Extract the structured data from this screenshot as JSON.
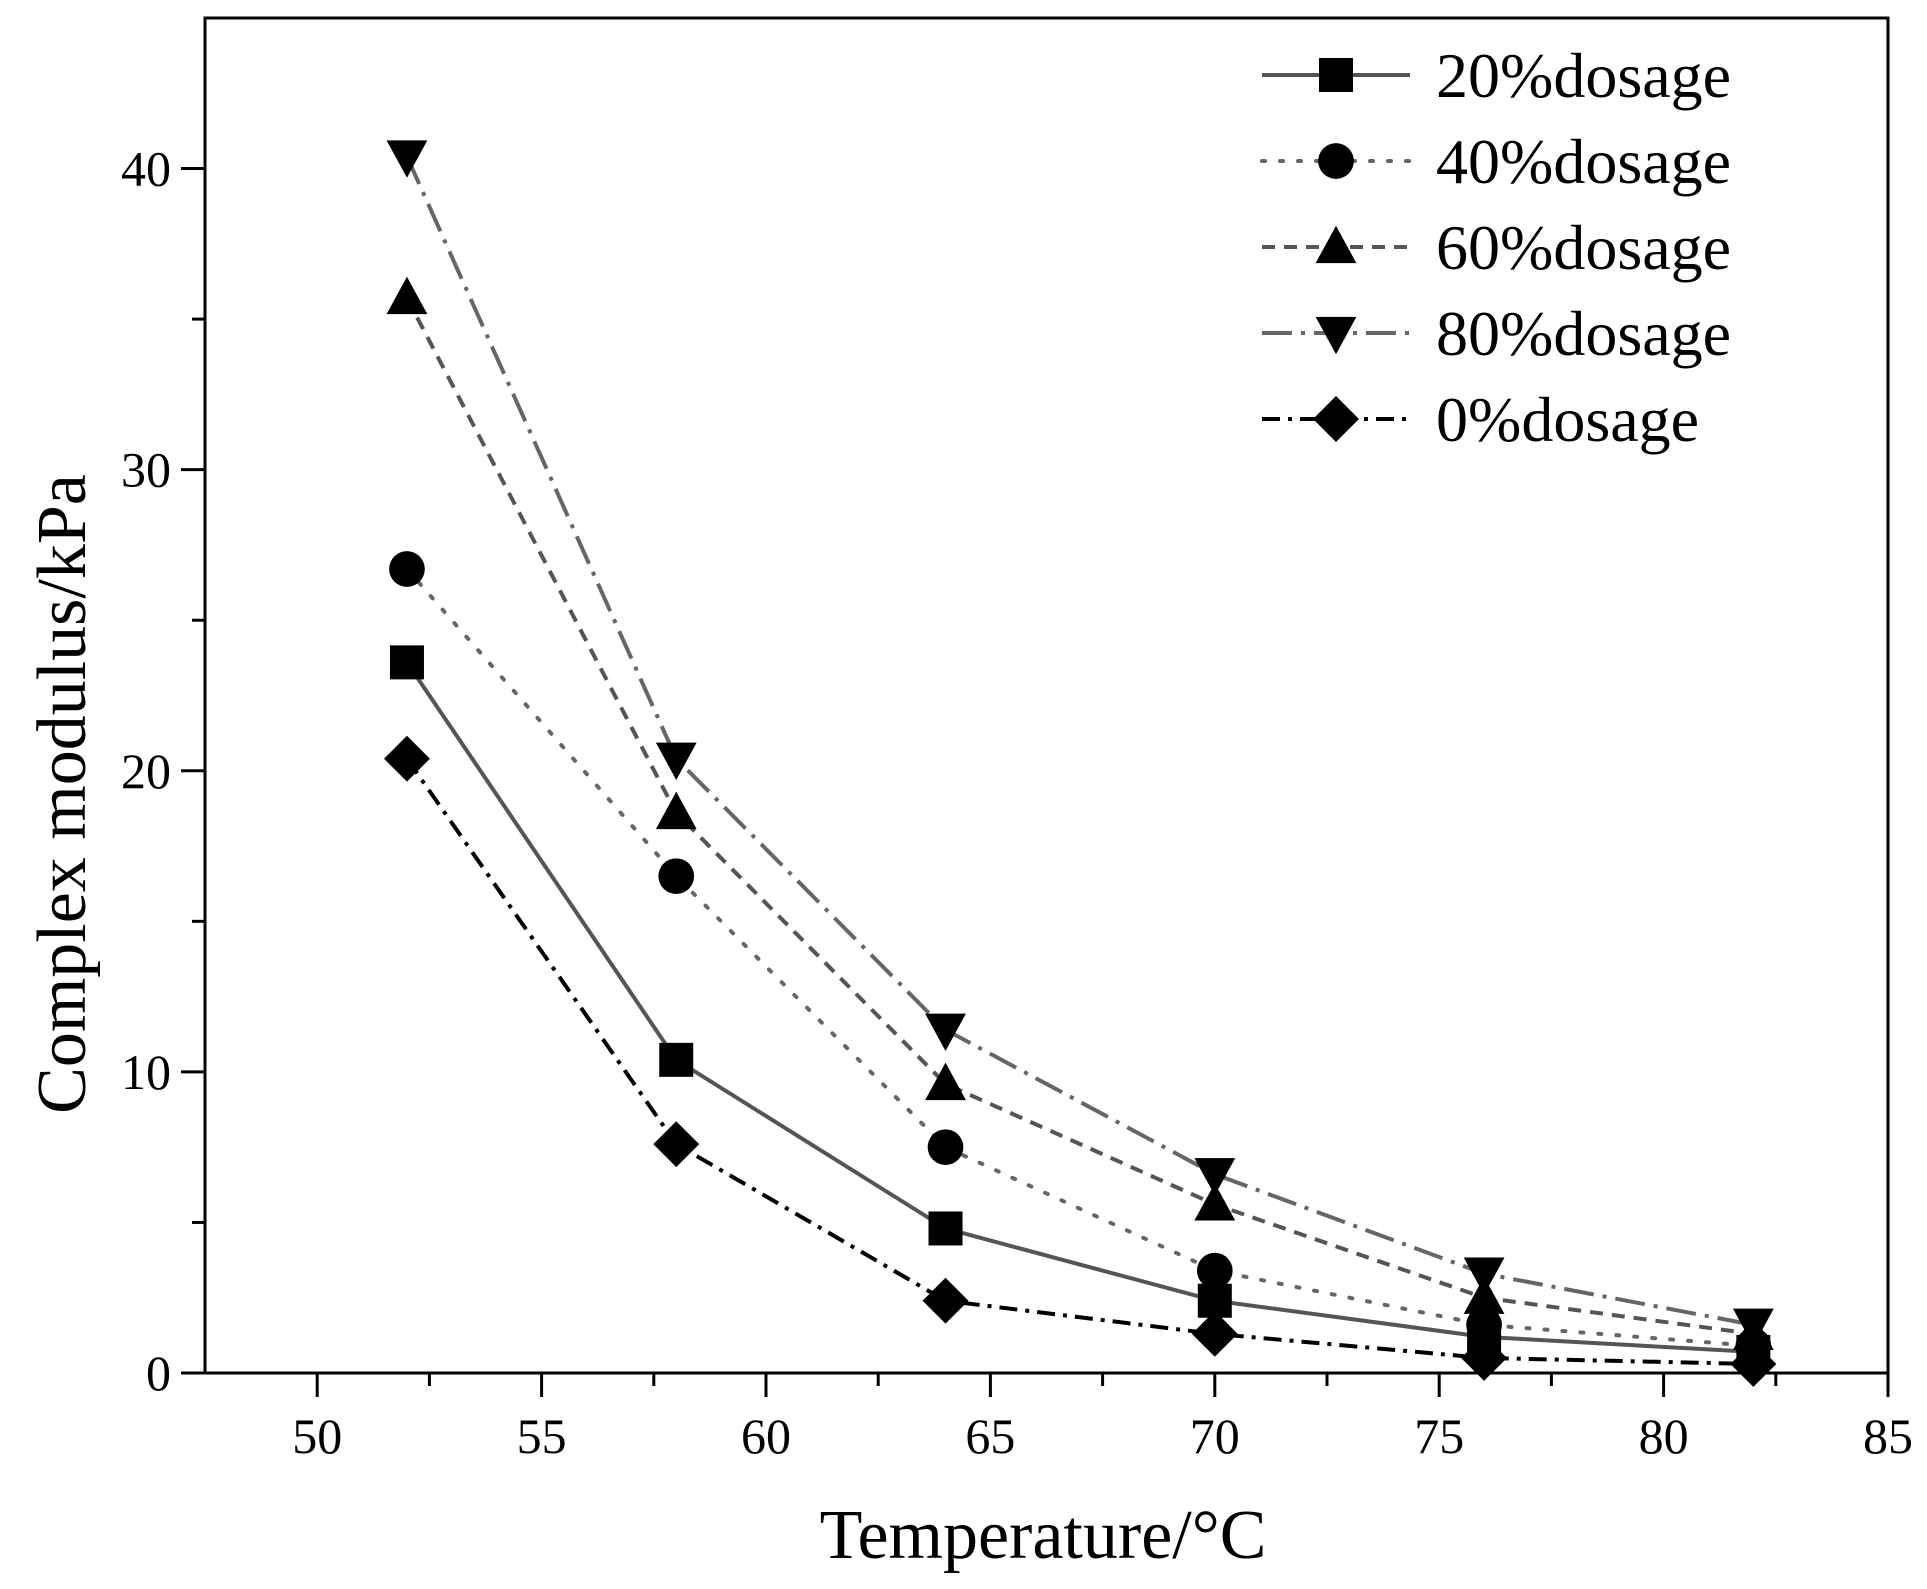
{
  "chart_data": {
    "type": "line",
    "title": "",
    "xlabel": "Temperature/°C",
    "ylabel": "Complex modulus/kPa",
    "xlim": [
      47.5,
      85
    ],
    "ylim": [
      0,
      45
    ],
    "xticks": [
      50,
      55,
      60,
      65,
      70,
      75,
      80,
      85
    ],
    "yticks": [
      0,
      10,
      20,
      30,
      40
    ],
    "x_minor_ticks": [
      52.5,
      57.5,
      62.5,
      67.5,
      72.5,
      77.5,
      82.5
    ],
    "y_minor_ticks": [
      5,
      15,
      25,
      35
    ],
    "grid": false,
    "legend_position": "top-right",
    "x": [
      52,
      58,
      64,
      70,
      76,
      82
    ],
    "series": [
      {
        "name": "20%dosage",
        "marker": "square",
        "dash": "solid",
        "color": "#555555",
        "values": [
          23.6,
          10.4,
          4.8,
          2.4,
          1.2,
          0.7
        ]
      },
      {
        "name": "40%dosage",
        "marker": "circle",
        "dash": "dotted",
        "color": "#666666",
        "values": [
          26.7,
          16.5,
          7.5,
          3.4,
          1.6,
          0.9
        ]
      },
      {
        "name": "60%dosage",
        "marker": "triangle-up",
        "dash": "dashed",
        "color": "#555555",
        "values": [
          35.7,
          18.6,
          9.6,
          5.6,
          2.5,
          1.3
        ]
      },
      {
        "name": "80%dosage",
        "marker": "triangle-down",
        "dash": "dash-dot",
        "color": "#666666",
        "values": [
          40.4,
          20.4,
          11.4,
          6.6,
          3.3,
          1.6
        ]
      },
      {
        "name": "0%dosage",
        "marker": "diamond",
        "dash": "dash-dot-black",
        "color": "#000000",
        "values": [
          20.4,
          7.6,
          2.4,
          1.3,
          0.5,
          0.3
        ]
      }
    ]
  }
}
